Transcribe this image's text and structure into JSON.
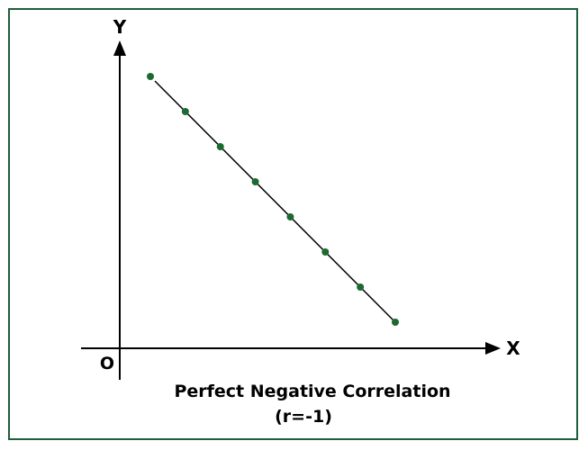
{
  "chart_data": {
    "type": "scatter",
    "title": "Perfect Negative Correlation",
    "subtitle": "(r=-1)",
    "xlabel": "X",
    "ylabel": "Y",
    "origin_label": "O",
    "x": [
      1,
      2,
      3,
      4,
      5,
      6,
      7,
      8
    ],
    "y": [
      8,
      7,
      6,
      5,
      4,
      3,
      2,
      1
    ],
    "xlim": [
      0,
      9
    ],
    "ylim": [
      0,
      9
    ],
    "grid": false,
    "trend_line": true,
    "colors": {
      "points": "#1a6b2f",
      "line": "#000000",
      "border": "#1e5e3a"
    }
  }
}
